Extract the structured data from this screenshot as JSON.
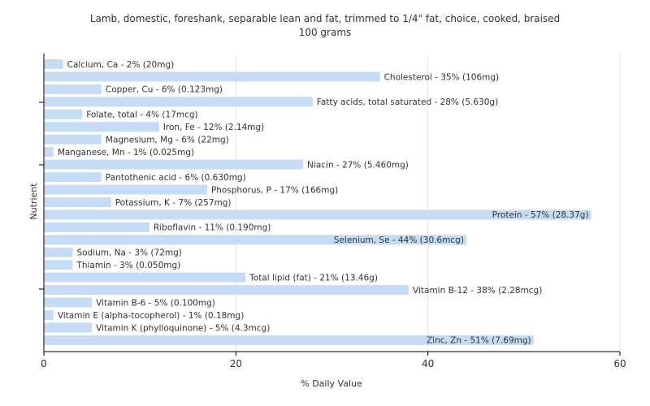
{
  "chart_data": {
    "type": "bar",
    "orientation": "horizontal",
    "title": "Lamb, domestic, foreshank, separable lean and fat, trimmed to 1/4\" fat, choice, cooked, braised",
    "subtitle": "100 grams",
    "xlabel": "% Daily Value",
    "ylabel": "Nutrient",
    "xlim": [
      0,
      60
    ],
    "xticks": [
      0,
      20,
      40,
      60
    ],
    "grid": true,
    "bar_color": "#c6dcf5",
    "categories": [
      "Calcium, Ca",
      "Cholesterol",
      "Copper, Cu",
      "Fatty acids, total saturated",
      "Folate, total",
      "Iron, Fe",
      "Magnesium, Mg",
      "Manganese, Mn",
      "Niacin",
      "Pantothenic acid",
      "Phosphorus, P",
      "Potassium, K",
      "Protein",
      "Riboflavin",
      "Selenium, Se",
      "Sodium, Na",
      "Thiamin",
      "Total lipid (fat)",
      "Vitamin B-12",
      "Vitamin B-6",
      "Vitamin E (alpha-tocopherol)",
      "Vitamin K (phylloquinone)",
      "Zinc, Zn"
    ],
    "values": [
      2,
      35,
      6,
      28,
      4,
      12,
      6,
      1,
      27,
      6,
      17,
      7,
      57,
      11,
      44,
      3,
      3,
      21,
      38,
      5,
      1,
      5,
      51
    ],
    "labels": [
      "Calcium, Ca - 2% (20mg)",
      "Cholesterol - 35% (106mg)",
      "Copper, Cu - 6% (0.123mg)",
      "Fatty acids, total saturated - 28% (5.630g)",
      "Folate, total - 4% (17mcg)",
      "Iron, Fe - 12% (2.14mg)",
      "Magnesium, Mg - 6% (22mg)",
      "Manganese, Mn - 1% (0.025mg)",
      "Niacin - 27% (5.460mg)",
      "Pantothenic acid - 6% (0.630mg)",
      "Phosphorus, P - 17% (166mg)",
      "Potassium, K - 7% (257mg)",
      "Protein - 57% (28.37g)",
      "Riboflavin - 11% (0.190mg)",
      "Selenium, Se - 44% (30.6mcg)",
      "Sodium, Na - 3% (72mg)",
      "Thiamin - 3% (0.050mg)",
      "Total lipid (fat) - 21% (13.46g)",
      "Vitamin B-12 - 38% (2.28mcg)",
      "Vitamin B-6 - 5% (0.100mg)",
      "Vitamin E (alpha-tocopherol) - 1% (0.18mg)",
      "Vitamin K (phylloquinone) - 5% (4.3mcg)",
      "Zinc, Zn - 51% (7.69mg)"
    ]
  }
}
